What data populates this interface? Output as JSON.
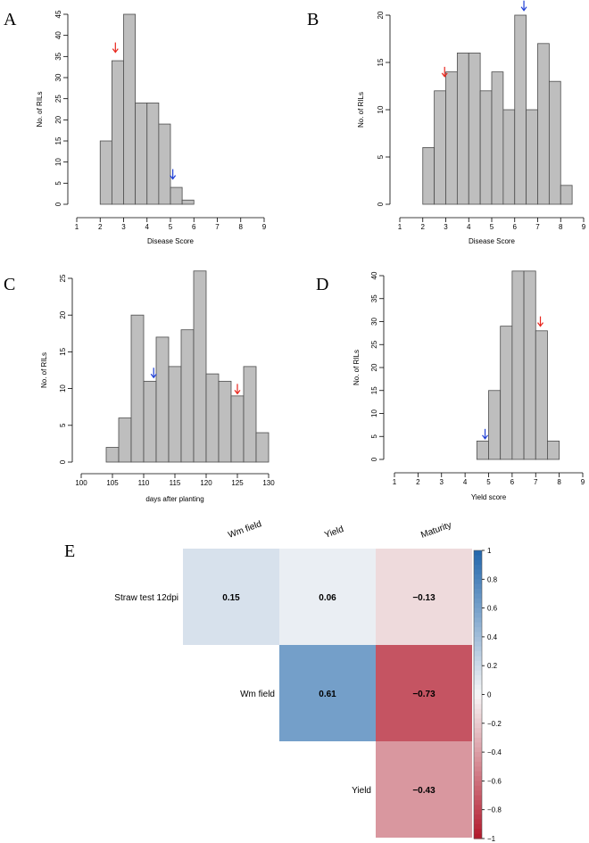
{
  "chart_data": [
    {
      "panel": "A",
      "type": "bar",
      "title": "",
      "xlabel": "Disease Score",
      "ylabel": "No. of RILs",
      "xlim": [
        1,
        9
      ],
      "ylim": [
        0,
        45
      ],
      "xticks": [
        "1",
        "2",
        "3",
        "4",
        "5",
        "6",
        "7",
        "8",
        "9"
      ],
      "yticks": [
        "0",
        "5",
        "10",
        "15",
        "20",
        "25",
        "30",
        "35",
        "40",
        "45"
      ],
      "bin_edges": [
        2.0,
        2.5,
        3.0,
        3.5,
        4.0,
        4.5,
        5.0,
        5.5,
        6.0
      ],
      "values": [
        15,
        34,
        45,
        24,
        24,
        19,
        4,
        1
      ],
      "arrows": [
        {
          "color": "#e8261d",
          "x": 2.65,
          "y": 36
        },
        {
          "color": "#1f3fd6",
          "x": 5.1,
          "y": 6
        }
      ]
    },
    {
      "panel": "B",
      "type": "bar",
      "title": "",
      "xlabel": "Disease Score",
      "ylabel": "No. of RILs",
      "xlim": [
        1,
        9
      ],
      "ylim": [
        0,
        20
      ],
      "xticks": [
        "1",
        "2",
        "3",
        "4",
        "5",
        "6",
        "7",
        "8",
        "9"
      ],
      "yticks": [
        "0",
        "5",
        "10",
        "15",
        "20"
      ],
      "bin_edges": [
        2.0,
        2.5,
        3.0,
        3.5,
        4.0,
        4.5,
        5.0,
        5.5,
        6.0,
        6.5,
        7.0,
        7.5,
        8.0,
        8.5
      ],
      "values": [
        6,
        12,
        14,
        16,
        16,
        12,
        14,
        10,
        20,
        10,
        17,
        13,
        2
      ],
      "arrows": [
        {
          "color": "#e8261d",
          "x": 2.95,
          "y": 13.5
        },
        {
          "color": "#1f3fd6",
          "x": 6.4,
          "y": 20.5
        }
      ]
    },
    {
      "panel": "C",
      "type": "bar",
      "title": "",
      "xlabel": "days after planting",
      "ylabel": "No. of RILs",
      "xlim": [
        100,
        130
      ],
      "ylim": [
        0,
        25
      ],
      "xticks": [
        "100",
        "105",
        "110",
        "115",
        "120",
        "125",
        "130"
      ],
      "yticks": [
        "0",
        "5",
        "10",
        "15",
        "20",
        "25"
      ],
      "bin_edges": [
        104,
        106,
        108,
        110,
        112,
        114,
        116,
        118,
        120,
        122,
        124,
        126,
        128,
        130
      ],
      "values": [
        2,
        6,
        20,
        11,
        17,
        13,
        18,
        26,
        12,
        11,
        9,
        13,
        4
      ],
      "arrows": [
        {
          "color": "#1f3fd6",
          "x": 111.6,
          "y": 11.5
        },
        {
          "color": "#e8261d",
          "x": 125.0,
          "y": 9.3
        }
      ]
    },
    {
      "panel": "D",
      "type": "bar",
      "title": "",
      "xlabel": "Yield score",
      "ylabel": "No. of RILs",
      "xlim": [
        1,
        9
      ],
      "ylim": [
        0,
        40
      ],
      "xticks": [
        "1",
        "2",
        "3",
        "4",
        "5",
        "6",
        "7",
        "8",
        "9"
      ],
      "yticks": [
        "0",
        "5",
        "10",
        "15",
        "20",
        "25",
        "30",
        "35",
        "40"
      ],
      "bin_edges": [
        4.5,
        5.0,
        5.5,
        6.0,
        6.5,
        7.0,
        7.5,
        8.0
      ],
      "values": [
        4,
        15,
        29,
        41,
        41,
        28,
        4
      ],
      "arrows": [
        {
          "color": "#1f3fd6",
          "x": 4.85,
          "y": 4.5
        },
        {
          "color": "#e8261d",
          "x": 7.2,
          "y": 29
        }
      ]
    },
    {
      "panel": "E",
      "type": "heatmap",
      "title": "",
      "columns": [
        "Wm field",
        "Yield",
        "Maturity"
      ],
      "rows": [
        "Straw test 12dpi",
        "Wm field",
        "Yield"
      ],
      "cells": [
        {
          "row": 0,
          "col": 0,
          "value": 0.15,
          "label": "0.15"
        },
        {
          "row": 0,
          "col": 1,
          "value": 0.06,
          "label": "0.06"
        },
        {
          "row": 0,
          "col": 2,
          "value": -0.13,
          "label": "−0.13"
        },
        {
          "row": 1,
          "col": 1,
          "value": 0.61,
          "label": "0.61"
        },
        {
          "row": 1,
          "col": 2,
          "value": -0.73,
          "label": "−0.73"
        },
        {
          "row": 2,
          "col": 2,
          "value": -0.43,
          "label": "−0.43"
        }
      ],
      "colorbar": {
        "range": [
          -1,
          1
        ],
        "ticks": [
          "1",
          "0.8",
          "0.6",
          "0.4",
          "0.2",
          "0",
          "−0.2",
          "−0.4",
          "−0.6",
          "−0.8",
          "−1"
        ]
      }
    }
  ]
}
